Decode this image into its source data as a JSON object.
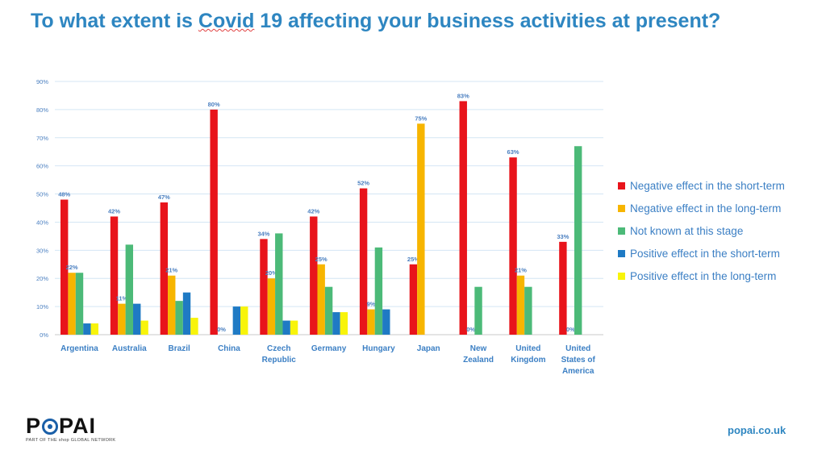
{
  "title_parts": [
    "To what extent is ",
    "Covid",
    " 19 affecting your business activities at present?"
  ],
  "logo": {
    "text_before": "P",
    "text_after": "PAI",
    "icon": "popai-o-icon",
    "tagline": "PART OF THE shop GLOBAL NETWORK"
  },
  "website": "popai.co.uk",
  "chart_data": {
    "type": "bar",
    "title": "To what extent is Covid 19 affecting your business activities at present?",
    "xlabel": "",
    "ylabel": "",
    "ylim": [
      0,
      90
    ],
    "yticks": [
      "0%",
      "10%",
      "20%",
      "30%",
      "40%",
      "50%",
      "60%",
      "70%",
      "80%",
      "90%"
    ],
    "grid": true,
    "legend_position": "right",
    "categories": [
      [
        "Argentina"
      ],
      [
        "Australia"
      ],
      [
        "Brazil"
      ],
      [
        "China"
      ],
      [
        "Czech",
        "Republic"
      ],
      [
        "Germany"
      ],
      [
        "Hungary"
      ],
      [
        "Japan"
      ],
      [
        "New",
        "Zealand"
      ],
      [
        "United",
        "Kingdom"
      ],
      [
        "United",
        "States of",
        "America"
      ]
    ],
    "series": [
      {
        "name": "Negative effect in the short-term",
        "color": "#e8141b",
        "values": [
          48,
          42,
          47,
          80,
          34,
          42,
          52,
          25,
          83,
          63,
          33
        ],
        "labels": [
          "48%",
          "42%",
          "47%",
          "80%",
          "34%",
          "42%",
          "52%",
          "25%",
          "83%",
          "63%",
          "33%"
        ]
      },
      {
        "name": "Negative effect in the long-term",
        "color": "#f7b500",
        "values": [
          22,
          11,
          21,
          0,
          20,
          25,
          9,
          75,
          0,
          21,
          0
        ],
        "labels": [
          "22%",
          "11%",
          "21%",
          "0%",
          "20%",
          "25%",
          "9%",
          "75%",
          "0%",
          "21%",
          "0%"
        ]
      },
      {
        "name": "Not known at this stage",
        "color": "#4cba78",
        "values": [
          22,
          32,
          12,
          0,
          36,
          17,
          31,
          0,
          17,
          17,
          67
        ],
        "labels": []
      },
      {
        "name": "Positive effect in the short-term",
        "color": "#1f7ac4",
        "values": [
          4,
          11,
          15,
          10,
          5,
          8,
          9,
          0,
          0,
          0,
          0
        ],
        "labels": []
      },
      {
        "name": "Positive effect in  the long-term",
        "color": "#f8f40a",
        "values": [
          4,
          5,
          6,
          10,
          5,
          8,
          0,
          0,
          0,
          0,
          0
        ],
        "labels": []
      }
    ]
  }
}
